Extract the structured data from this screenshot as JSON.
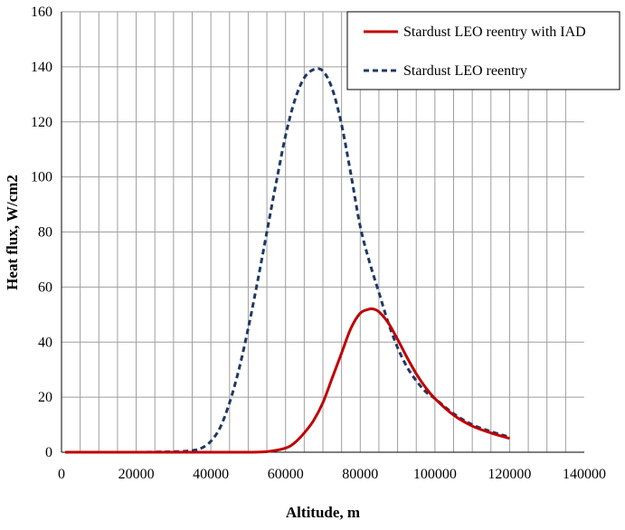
{
  "chart_data": {
    "type": "line",
    "title": "",
    "xlabel": "Altitude, m",
    "ylabel": "Heat  flux, W/cm2",
    "xlim": [
      0,
      140000
    ],
    "ylim": [
      0,
      160
    ],
    "x_ticks": [
      0,
      20000,
      40000,
      60000,
      80000,
      100000,
      120000,
      140000
    ],
    "y_ticks": [
      0,
      20,
      40,
      60,
      80,
      100,
      120,
      140,
      160
    ],
    "x_tick_labels": [
      "0",
      "20000",
      "40000",
      "60000",
      "80000",
      "100000",
      "120000",
      "140000"
    ],
    "y_tick_labels": [
      "0",
      "20",
      "40",
      "60",
      "80",
      "100",
      "120",
      "140",
      "160"
    ],
    "x_minor_step": 5000,
    "grid": true,
    "legend_position": "top-right",
    "series": [
      {
        "name": "Stardust LEO reentry with IAD",
        "color": "#c00000",
        "line_style": "solid",
        "x": [
          1000,
          10000,
          20000,
          30000,
          40000,
          45000,
          50000,
          55000,
          60000,
          62500,
          65000,
          67500,
          70000,
          72500,
          75000,
          77500,
          80000,
          82500,
          83500,
          85000,
          87500,
          90000,
          92500,
          95000,
          97500,
          100000,
          105000,
          110000,
          115000,
          120000
        ],
        "y": [
          0,
          0,
          0,
          0,
          0,
          0,
          0,
          0.2,
          1.5,
          3.5,
          7,
          11.5,
          18,
          27,
          36,
          45,
          50.5,
          52,
          52,
          51,
          47,
          41,
          34.5,
          28.5,
          23.5,
          19.5,
          13.5,
          9.5,
          7,
          5
        ]
      },
      {
        "name": "Stardust LEO reentry",
        "color": "#1f3864",
        "line_style": "dashed",
        "x": [
          1000,
          10000,
          20000,
          30000,
          35000,
          37500,
          40000,
          42500,
          45000,
          47500,
          50000,
          52500,
          55000,
          57500,
          60000,
          62500,
          65000,
          67500,
          70000,
          72500,
          75000,
          77500,
          80000,
          82500,
          85000,
          87500,
          90000,
          92500,
          95000,
          97500,
          100000,
          105000,
          110000,
          115000,
          120000
        ],
        "y": [
          0,
          0,
          0,
          0.2,
          0.6,
          1.5,
          4,
          9,
          18,
          30,
          45,
          62,
          80,
          98,
          115,
          128,
          136,
          139,
          138.5,
          132,
          119,
          101,
          82,
          69,
          58,
          47,
          38,
          31,
          26,
          22,
          19.5,
          14,
          10,
          7.5,
          5.5
        ]
      }
    ]
  }
}
